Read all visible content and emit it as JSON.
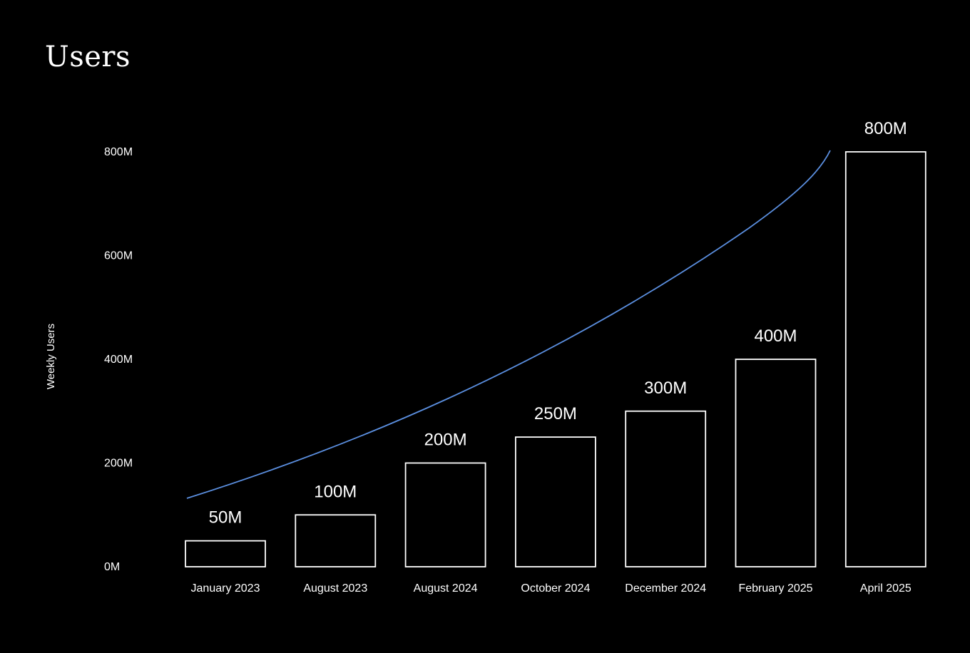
{
  "chart_data": {
    "type": "bar",
    "title": "Users",
    "xlabel": "",
    "ylabel": "Weekly Users",
    "ylim": [
      0,
      800
    ],
    "y_ticks": [
      0,
      200,
      400,
      600,
      800
    ],
    "y_tick_labels": [
      "0M",
      "200M",
      "400M",
      "600M",
      "800M"
    ],
    "categories": [
      "January 2023",
      "August 2023",
      "August 2024",
      "October 2024",
      "December 2024",
      "February 2025",
      "April 2025"
    ],
    "values": [
      50,
      100,
      200,
      250,
      300,
      400,
      800
    ],
    "value_labels": [
      "50M",
      "100M",
      "200M",
      "250M",
      "300M",
      "400M",
      "800M"
    ],
    "trend_line": {
      "color": "#5b8fe0",
      "type": "growth-curve"
    },
    "grid": false,
    "legend": "none",
    "colors": {
      "background": "#000000",
      "bar_stroke": "#ffffff",
      "text": "#ffffff",
      "trend": "#5b8fe0"
    }
  }
}
